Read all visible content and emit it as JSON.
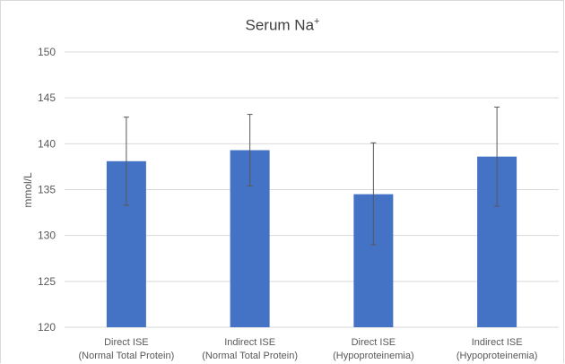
{
  "chart_data": {
    "type": "bar",
    "title": "Serum Na",
    "title_superscript": "+",
    "xlabel": "",
    "ylabel": "mmol/L",
    "ylim": [
      120,
      150
    ],
    "yticks": [
      120,
      125,
      130,
      135,
      140,
      145,
      150
    ],
    "grid": true,
    "legend": "none",
    "categories": [
      [
        "Direct ISE",
        "(Normal Total Protein)"
      ],
      [
        "Indirect ISE",
        "(Normal Total Protein)"
      ],
      [
        "Direct ISE",
        "(Hypoproteinemia)"
      ],
      [
        "Indirect ISE",
        "(Hypoproteinemia)"
      ]
    ],
    "values": [
      138.1,
      139.3,
      134.5,
      138.6
    ],
    "error_low": [
      133.3,
      135.4,
      129.0,
      133.2
    ],
    "error_high": [
      142.9,
      143.2,
      140.1,
      144.0
    ],
    "bar_color": "#4472C4",
    "grid_color": "#d9d9d9",
    "error_color": "#595959"
  }
}
